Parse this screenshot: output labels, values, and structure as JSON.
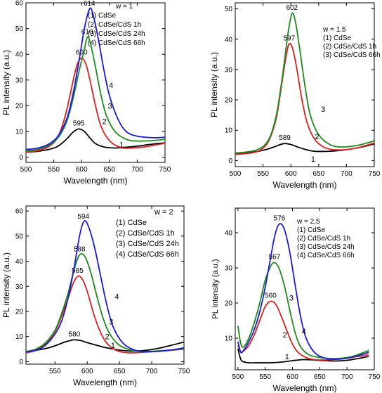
{
  "colors": {
    "series_1": "#000000",
    "series_2": "#e41e1e",
    "series_3": "#1f8a1f",
    "series_4": "#1a1adf",
    "peak_label_576": "#1a1adf"
  },
  "chart_data": [
    {
      "type": "line",
      "panel": "top-left",
      "xlabel": "Wavelength (nm)",
      "ylabel": "PL intensity (a.u.)",
      "xlim": [
        500,
        750
      ],
      "ylim": [
        -2,
        60
      ],
      "xticks": [
        500,
        550,
        600,
        650,
        700,
        750
      ],
      "yticks": [
        0,
        10,
        20,
        30,
        40,
        50,
        60
      ],
      "legend_title": "w = 1",
      "legend_entries": [
        "(1) CdSe",
        "(2) CdSe/CdS 1h",
        "(3) CdSe/CdS 24h",
        "(4) CdSe/CdS 66h"
      ],
      "series": [
        {
          "id": "1",
          "color": "#000000",
          "peak_label": "595",
          "x": [
            500,
            520,
            540,
            555,
            565,
            575,
            585,
            595,
            605,
            615,
            625,
            640,
            660,
            680,
            700,
            720,
            740,
            750
          ],
          "y": [
            2,
            2.3,
            3,
            4,
            5.5,
            7.5,
            9.8,
            11,
            10,
            7.5,
            5.3,
            4,
            3.6,
            3.9,
            4.3,
            4.9,
            5.4,
            5.6
          ]
        },
        {
          "id": "2",
          "color": "#e41e1e",
          "peak_label": "600",
          "x": [
            500,
            520,
            540,
            555,
            565,
            575,
            585,
            592,
            600,
            608,
            615,
            625,
            635,
            650,
            670,
            690,
            710,
            730,
            750
          ],
          "y": [
            2,
            2.5,
            4,
            7,
            12,
            20,
            30,
            36,
            38.5,
            36,
            30,
            20,
            12,
            6.5,
            3.8,
            3.6,
            3.9,
            4.6,
            5.5
          ]
        },
        {
          "id": "3",
          "color": "#1f8a1f",
          "peak_label": "610",
          "x": [
            500,
            520,
            540,
            555,
            565,
            575,
            585,
            595,
            605,
            610,
            615,
            625,
            635,
            645,
            660,
            680,
            700,
            730,
            750
          ],
          "y": [
            2.5,
            3,
            4.5,
            7,
            10,
            15,
            23,
            33,
            42,
            46.5,
            45,
            35,
            24,
            16,
            10,
            7,
            6.3,
            6.5,
            7
          ]
        },
        {
          "id": "4",
          "color": "#1a1adf",
          "peak_label": "614",
          "x": [
            500,
            520,
            540,
            555,
            565,
            575,
            585,
            595,
            605,
            614,
            620,
            630,
            640,
            650,
            665,
            680,
            700,
            730,
            750
          ],
          "y": [
            3,
            3.5,
            5,
            7.5,
            11,
            16,
            25,
            37,
            50,
            57.5,
            56,
            46,
            34,
            24,
            15,
            10,
            8.2,
            7.6,
            7.8
          ]
        }
      ],
      "curve_labels": [
        {
          "text": "1",
          "x": 672,
          "y": 5
        },
        {
          "text": "2",
          "x": 641,
          "y": 14
        },
        {
          "text": "3",
          "x": 651,
          "y": 20
        },
        {
          "text": "4",
          "x": 653,
          "y": 28
        }
      ]
    },
    {
      "type": "line",
      "panel": "top-right",
      "xlabel": "Wavelength (nm)",
      "ylabel": "PL intensity (a.u.)",
      "xlim": [
        500,
        750
      ],
      "ylim": [
        -2,
        52
      ],
      "xticks": [
        500,
        550,
        600,
        650,
        700,
        750
      ],
      "yticks": [
        0,
        10,
        20,
        30,
        40,
        50
      ],
      "legend_title": "w = 1.5",
      "legend_entries": [
        "(1) CdSe",
        "(2) CdSe/CdS 1h",
        "(3) CdSe/CdS 66h"
      ],
      "series": [
        {
          "id": "1",
          "color": "#000000",
          "peak_label": "589",
          "x": [
            500,
            520,
            540,
            555,
            570,
            580,
            589,
            600,
            612,
            625,
            640,
            660,
            680,
            700,
            720,
            740,
            750
          ],
          "y": [
            2.3,
            2.5,
            3,
            3.6,
            4.5,
            5.2,
            5.6,
            5.3,
            4.5,
            3.7,
            3.1,
            3,
            3.2,
            3.6,
            4.2,
            5,
            5.5
          ]
        },
        {
          "id": "2",
          "color": "#e41e1e",
          "peak_label": "597",
          "x": [
            500,
            520,
            540,
            555,
            565,
            575,
            585,
            592,
            597,
            603,
            610,
            620,
            630,
            645,
            665,
            690,
            720,
            750
          ],
          "y": [
            2,
            2.3,
            3,
            5,
            8.5,
            15,
            27,
            35,
            38.5,
            37,
            31,
            20,
            12,
            6.5,
            4,
            3.5,
            4.2,
            5.8
          ]
        },
        {
          "id": "3",
          "color": "#1f8a1f",
          "peak_label": "602",
          "x": [
            500,
            520,
            540,
            555,
            565,
            575,
            585,
            595,
            602,
            608,
            615,
            625,
            635,
            650,
            670,
            690,
            720,
            750
          ],
          "y": [
            2.5,
            2.8,
            3.6,
            5.5,
            9,
            16,
            28,
            42,
            48.5,
            46,
            38,
            25,
            15,
            8.5,
            5.3,
            4.5,
            5,
            6.5
          ]
        }
      ],
      "curve_labels": [
        {
          "text": "1",
          "x": 640,
          "y": 0.5
        },
        {
          "text": "2",
          "x": 647,
          "y": 8
        },
        {
          "text": "3",
          "x": 658,
          "y": 17
        }
      ]
    },
    {
      "type": "line",
      "panel": "bottom-left",
      "xlabel": "Wavelength (nm)",
      "ylabel": "PL intensity (a.u.)",
      "xlim": [
        505,
        750
      ],
      "ylim": [
        -1,
        62
      ],
      "xticks": [
        550,
        600,
        650,
        700,
        750
      ],
      "yticks": [
        0,
        10,
        20,
        30,
        40,
        50,
        60
      ],
      "legend_title": "w = 2",
      "legend_entries": [
        "(1) CdSe",
        "(2) CdSe/CdS 1h",
        "(3) CdSe/CdS 24h",
        "(4) CdSe/CdS 66h"
      ],
      "series": [
        {
          "id": "1",
          "color": "#000000",
          "peak_label": "580",
          "x": [
            505,
            520,
            540,
            555,
            565,
            575,
            580,
            590,
            600,
            615,
            630,
            650,
            670,
            690,
            710,
            730,
            750
          ],
          "y": [
            4,
            4.5,
            5.5,
            6.8,
            7.8,
            8.5,
            8.7,
            8.4,
            7.6,
            6.5,
            5.5,
            4.6,
            4.2,
            4.5,
            5.3,
            6.5,
            7.8
          ]
        },
        {
          "id": "2",
          "color": "#e41e1e",
          "peak_label": "585",
          "x": [
            505,
            520,
            535,
            550,
            560,
            570,
            578,
            585,
            592,
            600,
            610,
            620,
            630,
            645,
            665,
            690,
            720,
            750
          ],
          "y": [
            3.5,
            4.5,
            7,
            12,
            18,
            25,
            31,
            34,
            33,
            28,
            19,
            12,
            7.5,
            4.5,
            3.5,
            3.8,
            4.3,
            5
          ]
        },
        {
          "id": "3",
          "color": "#1f8a1f",
          "peak_label": "588",
          "x": [
            505,
            520,
            535,
            550,
            560,
            570,
            580,
            588,
            596,
            605,
            615,
            625,
            635,
            650,
            670,
            690,
            720,
            750
          ],
          "y": [
            4,
            5,
            7.5,
            12.5,
            19,
            27,
            37,
            42.5,
            42,
            36,
            26,
            17,
            11,
            6.5,
            4.5,
            4,
            4.5,
            5
          ]
        },
        {
          "id": "4",
          "color": "#1a1adf",
          "peak_label": "594",
          "x": [
            505,
            520,
            535,
            550,
            560,
            570,
            580,
            588,
            594,
            600,
            610,
            620,
            630,
            640,
            655,
            675,
            700,
            725,
            750
          ],
          "y": [
            4,
            4.5,
            6.5,
            11,
            16,
            25,
            38,
            50,
            55.5,
            55,
            47,
            35,
            23,
            14,
            7.5,
            4.5,
            4,
            4.5,
            5.5
          ]
        }
      ],
      "curve_labels": [
        {
          "text": "1",
          "x": 640,
          "y": 6.5
        },
        {
          "text": "2",
          "x": 631,
          "y": 10
        },
        {
          "text": "3",
          "x": 637,
          "y": 16
        },
        {
          "text": "4",
          "x": 646,
          "y": 26
        }
      ]
    },
    {
      "type": "line",
      "panel": "bottom-right",
      "xlabel": "Wavelength (nm)",
      "ylabel": "PL intensity (a.u.)",
      "xlim": [
        495,
        750
      ],
      "ylim": [
        1,
        47
      ],
      "xticks": [
        500,
        550,
        600,
        650,
        700,
        750
      ],
      "yticks": [
        10,
        20,
        30,
        40
      ],
      "legend_title": "w = 2,5",
      "legend_entries": [
        "(1) CdSe",
        "(2) CdSe/CdS 1h",
        "(3) CdSe/CdS 24h",
        "(4) CdSe/CdS 66h"
      ],
      "series": [
        {
          "id": "1",
          "color": "#000000",
          "peak_label": "",
          "x": [
            500,
            505,
            510,
            520,
            540,
            560,
            580,
            600,
            620,
            640,
            660,
            680,
            700,
            720,
            740
          ],
          "y": [
            7,
            4,
            3.3,
            3,
            3,
            3,
            3.2,
            3.6,
            3.9,
            3.8,
            3.6,
            3.5,
            3.7,
            4.2,
            4.8
          ]
        },
        {
          "id": "2",
          "color": "#e41e1e",
          "peak_label": "560",
          "x": [
            500,
            505,
            510,
            520,
            530,
            540,
            550,
            560,
            570,
            580,
            590,
            600,
            610,
            625,
            640,
            660,
            680,
            700,
            720,
            740
          ],
          "y": [
            8,
            6,
            6.3,
            8,
            11,
            15,
            19,
            20.5,
            19.5,
            16,
            12,
            8.3,
            6,
            4.5,
            3.9,
            3.8,
            4,
            4.3,
            4.8,
            5.3
          ]
        },
        {
          "id": "3",
          "color": "#1f8a1f",
          "peak_label": "567",
          "x": [
            500,
            505,
            510,
            520,
            530,
            540,
            550,
            560,
            567,
            575,
            585,
            595,
            605,
            615,
            630,
            650,
            670,
            690,
            710,
            740
          ],
          "y": [
            13.5,
            8.5,
            7.5,
            10,
            14.5,
            20,
            26.5,
            30.5,
            31.5,
            30,
            25,
            18,
            11.5,
            7.5,
            5.3,
            4.5,
            4.2,
            4.3,
            4.8,
            6.5
          ]
        },
        {
          "id": "4",
          "color": "#1a1adf",
          "peak_label": "576",
          "x": [
            500,
            505,
            510,
            520,
            530,
            540,
            550,
            560,
            568,
            576,
            585,
            595,
            605,
            615,
            625,
            640,
            660,
            680,
            700,
            720,
            740
          ],
          "y": [
            9,
            6,
            6.5,
            9,
            12.5,
            17.5,
            24.5,
            33,
            39.5,
            42.5,
            41,
            34.5,
            25,
            16,
            10,
            6,
            4.3,
            4,
            4.3,
            5,
            6
          ]
        }
      ],
      "curve_labels": [
        {
          "text": "1",
          "x": 590,
          "y": 4.8
        },
        {
          "text": "2",
          "x": 586,
          "y": 11
        },
        {
          "text": "3",
          "x": 598,
          "y": 21.5
        },
        {
          "text": "4",
          "x": 621,
          "y": 12
        }
      ]
    }
  ]
}
